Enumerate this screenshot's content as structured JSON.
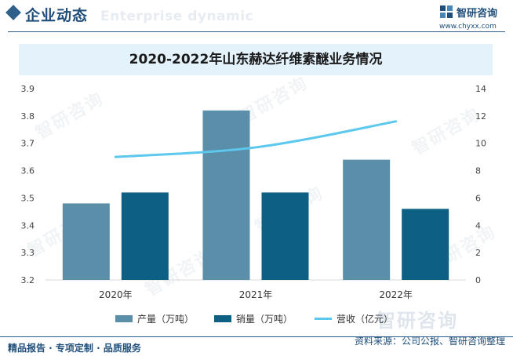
{
  "header": {
    "section_title": "企业动态",
    "section_subtitle": "Enterprise dynamic",
    "brand_name": "智研咨询",
    "brand_url": "www.chyxx.com"
  },
  "watermark": {
    "text": "智研咨询"
  },
  "chart_data": {
    "type": "bar",
    "title": "2020-2022年山东赫达纤维素醚业务情况",
    "categories": [
      "2020年",
      "2021年",
      "2022年"
    ],
    "series": [
      {
        "name": "产量（万吨）",
        "type": "bar",
        "axis": "left",
        "color": "#5b8fa9",
        "values": [
          3.48,
          3.82,
          3.64
        ]
      },
      {
        "name": "销量（万吨）",
        "type": "bar",
        "axis": "left",
        "color": "#0d5f84",
        "values": [
          3.52,
          3.52,
          3.46
        ]
      },
      {
        "name": "营收（亿元）",
        "type": "line",
        "axis": "right",
        "color": "#5dc8ee",
        "values": [
          9.0,
          9.7,
          11.6
        ]
      }
    ],
    "y_left": {
      "ylim": [
        3.2,
        3.9
      ],
      "ticks": [
        "3.2",
        "3.3",
        "3.4",
        "3.5",
        "3.6",
        "3.7",
        "3.8",
        "3.9"
      ]
    },
    "y_right": {
      "ylim": [
        0,
        14
      ],
      "ticks": [
        "0",
        "2",
        "4",
        "6",
        "8",
        "10",
        "12",
        "14"
      ]
    },
    "grid": false,
    "legend": "bottom"
  },
  "footer": {
    "left": "精品报告 · 专项定制 · 品质服务",
    "source": "资料来源：公司公报、智研咨询整理"
  }
}
